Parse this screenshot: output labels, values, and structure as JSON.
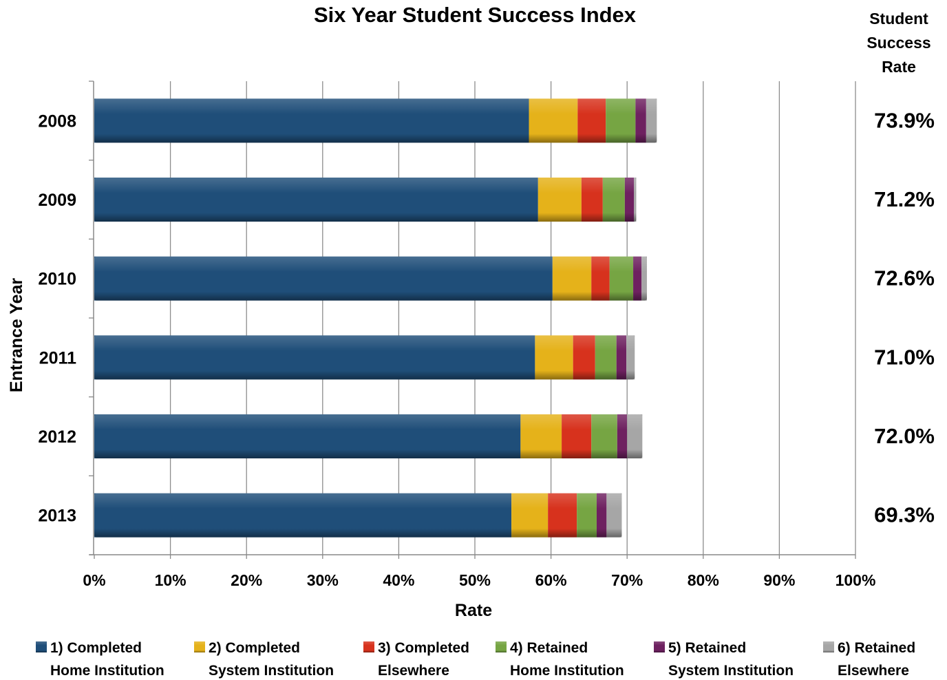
{
  "chart_data": {
    "type": "bar",
    "orientation": "horizontal",
    "stacked": true,
    "title": "Six Year Student Success Index",
    "xlabel": "Rate",
    "ylabel": "Entrance Year",
    "xlim": [
      0,
      100
    ],
    "x_ticks": [
      "0%",
      "10%",
      "20%",
      "30%",
      "40%",
      "50%",
      "60%",
      "70%",
      "80%",
      "90%",
      "100%"
    ],
    "grid": true,
    "legend_position": "bottom",
    "categories": [
      "2008",
      "2009",
      "2010",
      "2011",
      "2012",
      "2013"
    ],
    "series": [
      {
        "name": "1) Completed Home Institution",
        "legend_lines": [
          "1) Completed",
          "Home Institution"
        ],
        "color": "#1f4e79",
        "values": [
          57.1,
          58.3,
          60.2,
          57.9,
          56.0,
          54.8
        ]
      },
      {
        "name": "2) Completed System Institution",
        "legend_lines": [
          "2) Completed",
          "System Institution"
        ],
        "color": "#e5b21a",
        "values": [
          6.4,
          5.7,
          5.1,
          5.0,
          5.4,
          4.8
        ]
      },
      {
        "name": "3) Completed Elsewhere",
        "legend_lines": [
          "3) Completed",
          "Elsewhere"
        ],
        "color": "#d7321d",
        "values": [
          3.7,
          2.8,
          2.4,
          2.9,
          3.9,
          3.8
        ]
      },
      {
        "name": "4) Retained Home Institution",
        "legend_lines": [
          "4) Retained",
          "Home Institution"
        ],
        "color": "#76a543",
        "values": [
          3.9,
          2.9,
          3.1,
          2.8,
          3.4,
          2.6
        ]
      },
      {
        "name": "5) Retained System Institution",
        "legend_lines": [
          "5) Retained",
          "System Institution"
        ],
        "color": "#6e2160",
        "values": [
          1.4,
          1.2,
          1.1,
          1.3,
          1.3,
          1.3
        ]
      },
      {
        "name": "6) Retained Elsewhere",
        "legend_lines": [
          "6) Retained",
          "Elsewhere"
        ],
        "color": "#a6a6a6",
        "values": [
          1.4,
          0.3,
          0.7,
          1.1,
          2.0,
          2.0
        ]
      }
    ],
    "right_column": {
      "header": [
        "Student",
        "Success",
        "Rate"
      ],
      "values": [
        "73.9%",
        "71.2%",
        "72.6%",
        "71.0%",
        "72.0%",
        "69.3%"
      ]
    }
  }
}
